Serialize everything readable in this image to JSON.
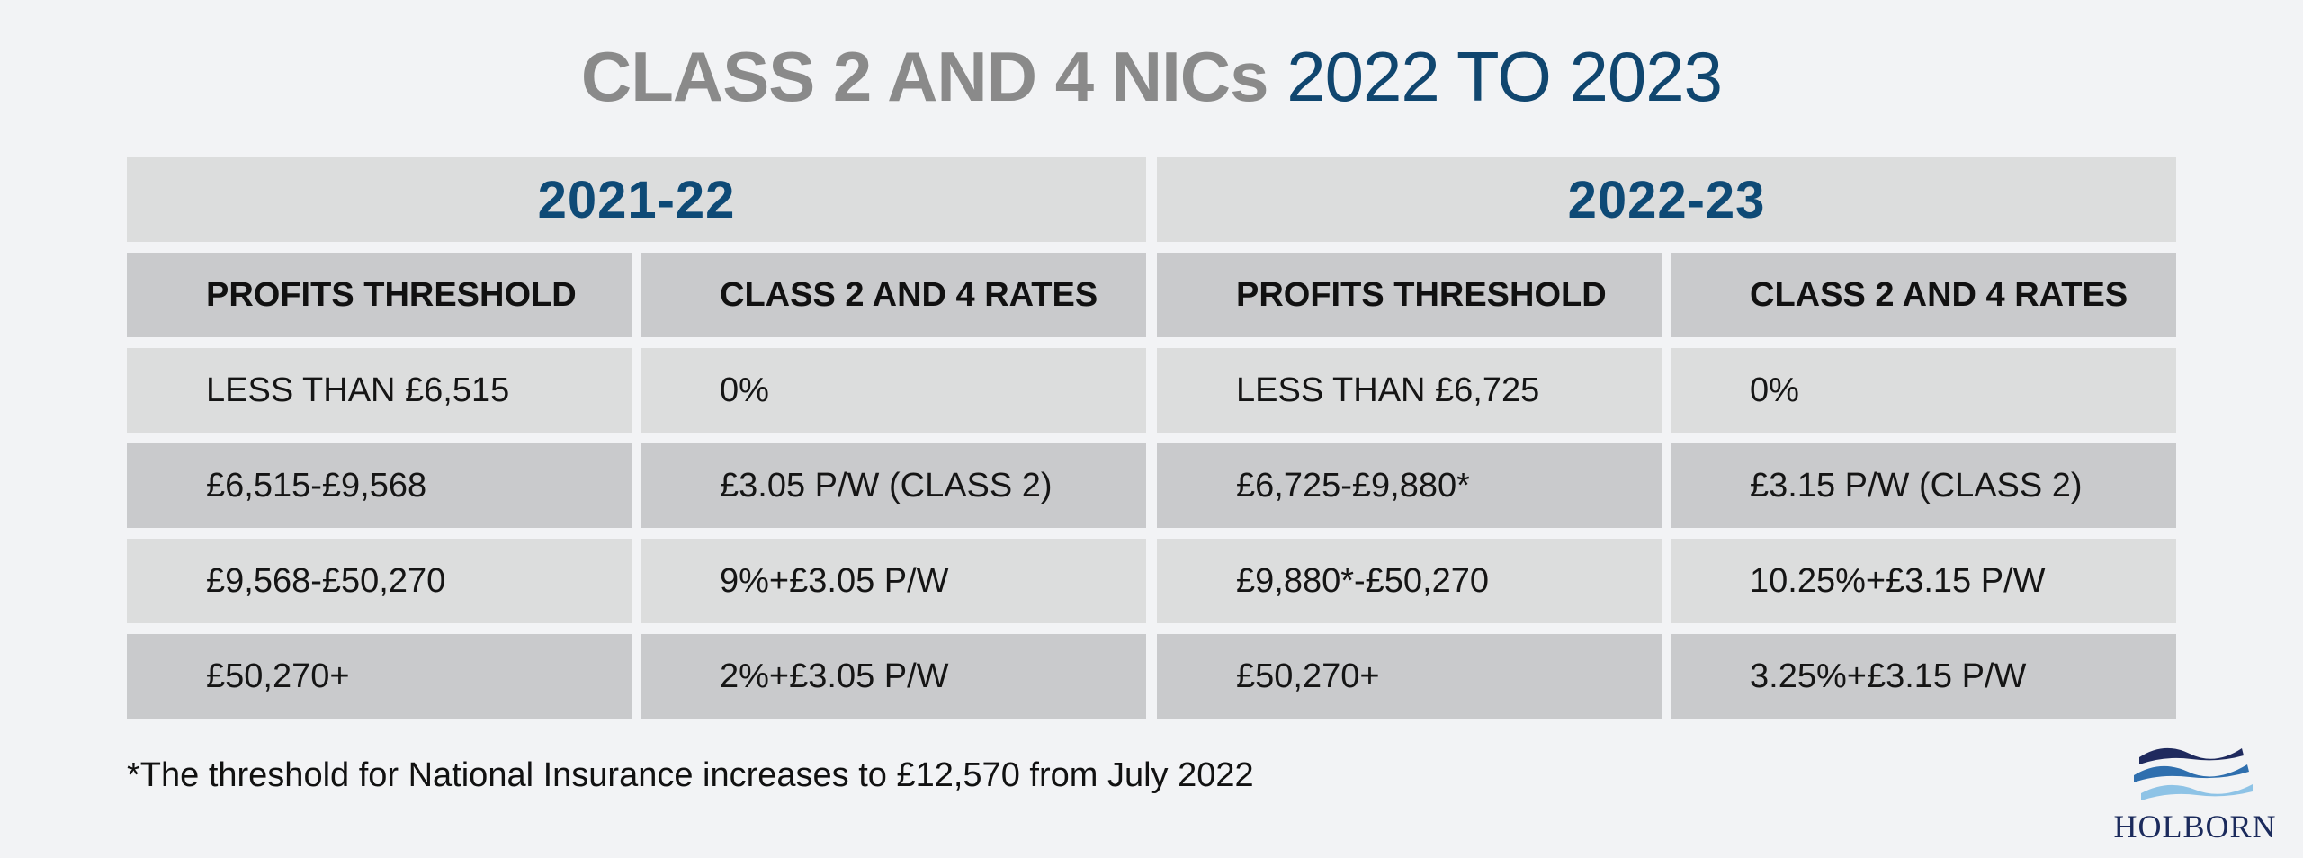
{
  "title": {
    "strong": "CLASS 2 AND 4 NICs",
    "light": "2022 TO 2023"
  },
  "periods": [
    {
      "year": "2021-22",
      "headers": [
        "PROFITS THRESHOLD",
        "CLASS 2 AND 4 RATES"
      ],
      "rows": [
        [
          "LESS THAN £6,515",
          "0%"
        ],
        [
          "£6,515-£9,568",
          "£3.05 P/W (CLASS 2)"
        ],
        [
          "£9,568-£50,270",
          "9%+£3.05 P/W"
        ],
        [
          "£50,270+",
          "2%+£3.05 P/W"
        ]
      ]
    },
    {
      "year": "2022-23",
      "headers": [
        "PROFITS THRESHOLD",
        "CLASS 2 AND 4 RATES"
      ],
      "rows": [
        [
          "LESS THAN £6,725",
          "0%"
        ],
        [
          "£6,725-£9,880*",
          "£3.15 P/W (CLASS 2)"
        ],
        [
          "£9,880*-£50,270",
          "10.25%+£3.15 P/W"
        ],
        [
          "£50,270+",
          "3.25%+£3.15 P/W"
        ]
      ]
    }
  ],
  "footnote": "*The threshold for National Insurance increases to £12,570 from July 2022",
  "logo": {
    "text": "HOLBORN",
    "icon": "waves-icon"
  },
  "colors": {
    "background": "#f2f3f5",
    "title_grey": "#8a8a8a",
    "accent_blue": "#0e4a76",
    "light_cell": "#dcdddd",
    "dark_cell": "#c9cacc"
  }
}
